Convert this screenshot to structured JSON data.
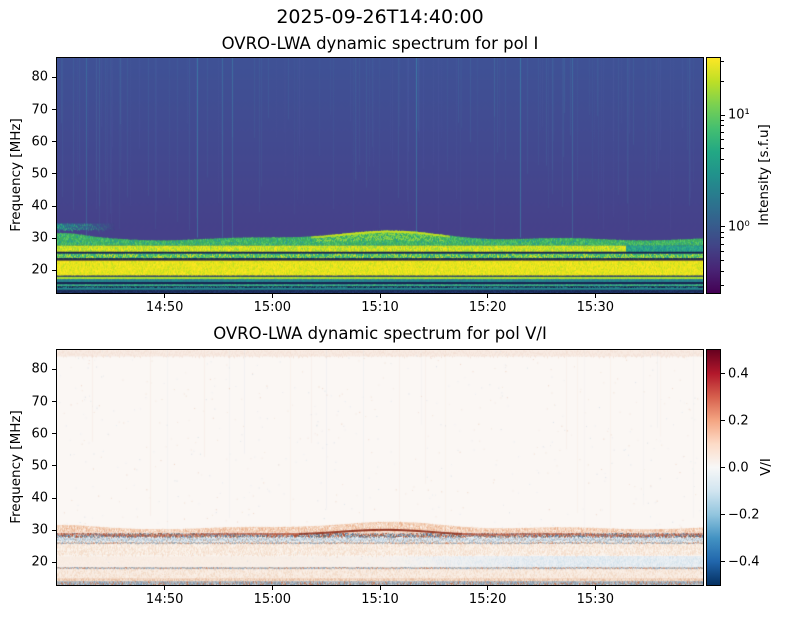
{
  "figure": {
    "suptitle": "2025-09-26T14:40:00"
  },
  "chart_data": [
    {
      "type": "heatmap",
      "title": "OVRO-LWA dynamic spectrum for pol I",
      "ylabel": "Frequency [MHz]",
      "y_range": [
        13,
        86
      ],
      "y_ticks": [
        {
          "label": "20",
          "value": 20
        },
        {
          "label": "30",
          "value": 30
        },
        {
          "label": "40",
          "value": 40
        },
        {
          "label": "50",
          "value": 50
        },
        {
          "label": "60",
          "value": 60
        },
        {
          "label": "70",
          "value": 70
        },
        {
          "label": "80",
          "value": 80
        }
      ],
      "x_start": "14:40:00",
      "x_end": "15:40:00",
      "x_span_minutes": 60,
      "x_ticks": [
        {
          "label": "14:50",
          "minutes": 10
        },
        {
          "label": "15:00",
          "minutes": 20
        },
        {
          "label": "15:10",
          "minutes": 30
        },
        {
          "label": "15:20",
          "minutes": 40
        },
        {
          "label": "15:30",
          "minutes": 50
        }
      ],
      "colorbar": {
        "label": "Intensity [s.f.u]",
        "scale": "log",
        "colormap": "viridis",
        "vmin": 0.257,
        "vmax": 32.3,
        "major_ticks": [
          {
            "label": "10¹",
            "value": 10
          },
          {
            "label": "10⁰",
            "value": 1
          }
        ],
        "minor_tick_values": [
          30,
          20,
          9,
          8,
          7,
          6,
          5,
          4,
          3,
          2,
          0.9,
          0.8,
          0.7,
          0.6,
          0.5,
          0.4,
          0.3
        ]
      },
      "render": {
        "seed": 7,
        "bg": {
          "type": "gradientV",
          "from": "#3f5296",
          "to": "#46418a",
          "extent": 0.74
        },
        "bands": [
          {
            "f": [
              34.6,
              32.6
            ],
            "colors": [
              "#2a788e",
              "#21918c",
              "#35b779"
            ],
            "speckle": 0.5,
            "x_alpha": {
              "x0": 0.0,
              "x1": 0.09,
              "a0": 0.85,
              "a1": 0
            }
          },
          {
            "f": [
              29.7,
              27.7
            ],
            "edge": {
              "base": 29.7,
              "gauss": [
                2.4,
                0.5,
                0.13
              ],
              "gauss2": [
                1.7,
                0.0,
                0.055
              ],
              "wiggle": [
                0.35,
                4.0,
                0.7
              ],
              "jitter": 0.15
            },
            "colors": [
              "#3fae5f",
              "#4ac16d",
              "#2a9d8f",
              "#5ec962"
            ],
            "speckle": 0.5,
            "top_fringe": {
              "color": "#c8e020",
              "px": 2,
              "min": 0.5
            },
            "hump_fill": {
              "color": "#9ed93c",
              "min": 0.55,
              "density": 0.5
            }
          },
          {
            "f": [
              27.7,
              25.8
            ],
            "colors": [
              "#d4e21f",
              "#f4e61e",
              "#a8db34",
              "#8ed645"
            ],
            "speckle": 0.55,
            "fade_right": {
              "start": 0.88,
              "colors": [
                "#2a9d8f",
                "#35b779",
                "#21918c"
              ]
            }
          },
          {
            "f": [
              25.8,
              25.2
            ],
            "colors": [
              "#16224e",
              "#1d2d66"
            ],
            "speckle": 0.25
          },
          {
            "f": [
              25.2,
              23.8
            ],
            "colors": [
              "#44bf70",
              "#8ed645",
              "#d8e021",
              "#2a9d8f"
            ],
            "speckle": 0.6
          },
          {
            "f": [
              23.8,
              23.3
            ],
            "colors": [
              "#131f4a"
            ],
            "speckle": 0
          },
          {
            "f": [
              23.3,
              23.0
            ],
            "colors": [
              "#6a5a26",
              "#7a6a2e"
            ],
            "speckle": 0.3
          },
          {
            "f": [
              23.0,
              18.4
            ],
            "colors": [
              "#ece51c",
              "#fde725",
              "#d8e021",
              "#c2df23"
            ],
            "speckle": 0.45
          },
          {
            "f": [
              18.4,
              18.0
            ],
            "colors": [
              "#233a66"
            ],
            "speckle": 0
          },
          {
            "f": [
              18.0,
              17.3
            ],
            "colors": [
              "#a8db34",
              "#bddf26",
              "#8ed645"
            ],
            "speckle": 0.5
          },
          {
            "f": [
              17.3,
              16.4
            ],
            "colors": [
              "#26828e",
              "#2a788e",
              "#21918c"
            ],
            "speckle": 0.5
          },
          {
            "f": [
              16.4,
              15.7
            ],
            "colors": [
              "#17254f",
              "#1d2d66"
            ],
            "speckle": 0.2
          },
          {
            "f": [
              15.7,
              15.1
            ],
            "colors": [
              "#2f9e8f",
              "#35b779",
              "#44bf70"
            ],
            "speckle": 0.55
          },
          {
            "f": [
              15.1,
              14.5
            ],
            "colors": [
              "#16224e",
              "#26828e"
            ],
            "speckle": 0.3
          },
          {
            "f": [
              14.5,
              14.0
            ],
            "colors": [
              "#21918c",
              "#26828e"
            ],
            "speckle": 0.5
          },
          {
            "f": [
              14.0,
              13.0
            ],
            "colors": [
              "#1b2a55",
              "#22366b"
            ],
            "speckle": 0.3
          }
        ],
        "streaks": [
          {
            "count": 80,
            "color": "#49c8c8",
            "a0": 0.03,
            "a1": 0.1,
            "f0": 86,
            "f1": 30.5,
            "partial": true
          },
          {
            "count": 7,
            "color": "#35d0c8",
            "a0": 0.15,
            "a1": 0.3,
            "f0": 86,
            "f1": 30.2,
            "partial": false
          },
          {
            "count": 50,
            "color": "#6a79c0",
            "a0": 0.04,
            "a1": 0.1,
            "f0": 86,
            "f1": 31.0,
            "partial": true
          },
          {
            "count": 60,
            "color": "#f8ef30",
            "a0": 0.04,
            "a1": 0.12,
            "f0": 23.0,
            "f1": 18.4,
            "partial": false
          },
          {
            "count": 40,
            "color": "#b8a800",
            "a0": 0.03,
            "a1": 0.08,
            "f0": 27.7,
            "f1": 25.8,
            "partial": false
          }
        ]
      }
    },
    {
      "type": "heatmap",
      "title": "OVRO-LWA dynamic spectrum for pol V/I",
      "ylabel": "Frequency [MHz]",
      "y_range": [
        13,
        86
      ],
      "y_ticks": [
        {
          "label": "20",
          "value": 20
        },
        {
          "label": "30",
          "value": 30
        },
        {
          "label": "40",
          "value": 40
        },
        {
          "label": "50",
          "value": 50
        },
        {
          "label": "60",
          "value": 60
        },
        {
          "label": "70",
          "value": 70
        },
        {
          "label": "80",
          "value": 80
        }
      ],
      "x_start": "14:40:00",
      "x_end": "15:40:00",
      "x_span_minutes": 60,
      "x_ticks": [
        {
          "label": "14:50",
          "minutes": 10
        },
        {
          "label": "15:00",
          "minutes": 20
        },
        {
          "label": "15:10",
          "minutes": 30
        },
        {
          "label": "15:20",
          "minutes": 40
        },
        {
          "label": "15:30",
          "minutes": 50
        }
      ],
      "colorbar": {
        "label": "V/I",
        "scale": "linear",
        "colormap": "RdBu_r",
        "vmin": -0.5,
        "vmax": 0.5,
        "major_ticks": [
          {
            "label": "0.4",
            "value": 0.4
          },
          {
            "label": "0.2",
            "value": 0.2
          },
          {
            "label": "0.0",
            "value": 0.0
          },
          {
            "label": "−0.2",
            "value": -0.2
          },
          {
            "label": "−0.4",
            "value": -0.4
          }
        ],
        "minor_tick_values": []
      },
      "render": {
        "seed": 11,
        "bg": {
          "type": "solid",
          "color": "#fbf7f4"
        },
        "bands": [
          {
            "f": [
              86,
              84.0
            ],
            "colors": [
              "#f7e9e1",
              "#f4e2d8"
            ],
            "speckle": 0.3,
            "alpha": 0.9
          },
          {
            "f": [
              30.6,
              29.3
            ],
            "edge": {
              "base": 30.6,
              "gauss": [
                1.8,
                0.5,
                0.13
              ],
              "gauss2": [
                0.8,
                0.0,
                0.06
              ],
              "wiggle": [
                0.3,
                4.0,
                0.7
              ],
              "jitter": 0.15
            },
            "colors": [
              "#f0c3a4",
              "#e9ae8b",
              "#f6dcc9",
              "#fdf4ee"
            ],
            "speckle": 0.7,
            "alpha": 0.8
          },
          {
            "f": [
              29.2,
              27.9
            ],
            "colors": [
              "#e3cfc3",
              "#b25136",
              "#5b7fa6",
              "#6e6e6e",
              "#c98468",
              "#8fb0c8"
            ],
            "speckle": 0.9
          },
          {
            "f": [
              27.7,
              26.6
            ],
            "colors": [
              "#dbe5ec",
              "#a9c2d6",
              "#c3d4e2",
              "#b9a79c"
            ],
            "speckle": 0.7,
            "alpha": 0.85
          },
          {
            "f": [
              26.4,
              25.9
            ],
            "colors": [
              "#d9cdc5",
              "#c97f5e",
              "#7f9cb8",
              "#9c9c9c"
            ],
            "speckle": 0.7,
            "alpha": 0.8
          },
          {
            "f": [
              25.7,
              22.2
            ],
            "colors": [
              "#f8e7da",
              "#f4dbc8",
              "#fdf6f0"
            ],
            "speckle": 0.6,
            "alpha": 0.8
          },
          {
            "f": [
              22.0,
              18.7
            ],
            "colors": [
              "#dce9f3",
              "#cfe1ef",
              "#eef4f9"
            ],
            "speckle": 0.6,
            "x_alpha": {
              "x0": 0.5,
              "x1": 0.78,
              "a0": 0.05,
              "a1": 0.75
            }
          },
          {
            "f": [
              21.9,
              18.8
            ],
            "colors": [
              "#f7e4d4",
              "#fbf1e9"
            ],
            "speckle": 0.5,
            "x_alpha": {
              "x0": 0.2,
              "x1": 0.6,
              "a0": 0.55,
              "a1": 0.05
            }
          },
          {
            "f": [
              18.6,
              18.1
            ],
            "colors": [
              "#cac2bc",
              "#c2795a",
              "#7f9cb8",
              "#999999"
            ],
            "speckle": 0.8,
            "alpha": 0.85
          },
          {
            "f": [
              18.0,
              15.2
            ],
            "colors": [
              "#f7e6d8",
              "#fbf2ea",
              "#f2d8c4"
            ],
            "speckle": 0.5,
            "alpha": 0.75
          },
          {
            "f": [
              15.1,
              14.3
            ],
            "colors": [
              "#eecdb6",
              "#e6bb9e",
              "#f6e2d2"
            ],
            "speckle": 0.6,
            "alpha": 0.9
          },
          {
            "f": [
              14.2,
              13.0
            ],
            "colors": [
              "#aab1b7",
              "#c2c6ca",
              "#8e99a3",
              "#c2795a",
              "#7f9cb8"
            ],
            "speckle": 0.85,
            "alpha": 0.95
          }
        ],
        "arcs": [
          {
            "base": 28.9,
            "gauss": [
              1.3,
              0.5,
              0.13
            ],
            "wiggle": [
              0.25,
              4.0,
              1.2
            ],
            "color": "#c05a40",
            "color_dark": "#8c2a17",
            "a0": 0.35,
            "a1": 0.95,
            "px": 2
          }
        ],
        "streaks": [
          {
            "count": 12,
            "color": "#e8a88e",
            "a0": 0.04,
            "a1": 0.09,
            "f0": 86,
            "f1": 13,
            "partial": true
          },
          {
            "count": 10,
            "color": "#9cc0dc",
            "a0": 0.04,
            "a1": 0.09,
            "f0": 86,
            "f1": 13,
            "partial": true
          }
        ],
        "dust": {
          "count": 800,
          "colors": [
            "#f2dccd",
            "#dde8f0",
            "#eac6b2",
            "#cdd9e4"
          ]
        }
      }
    }
  ]
}
